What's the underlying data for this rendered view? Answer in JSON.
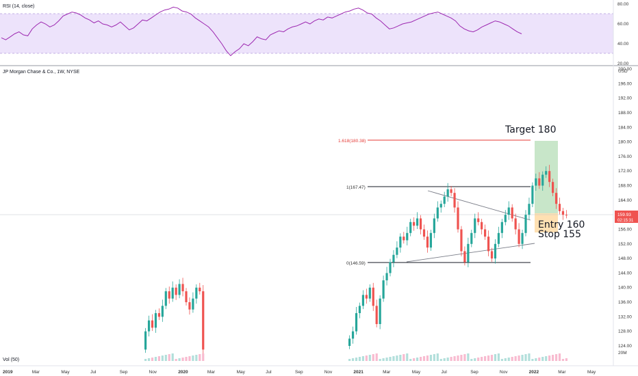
{
  "rsi_panel": {
    "title": "RSI (14, close)",
    "ticks": [
      "80.00",
      "60.00",
      "40.00",
      "20.00"
    ]
  },
  "price_panel": {
    "title": "JP Morgan Chase & Co., 1W, NYSE",
    "currency": "USD",
    "price_ticks": [
      "200.00",
      "196.00",
      "192.00",
      "188.00",
      "184.00",
      "180.00",
      "176.00",
      "172.00",
      "168.00",
      "164.00",
      "160.00",
      "156.00",
      "152.00",
      "148.00",
      "144.00",
      "140.00",
      "136.00",
      "132.00",
      "128.00",
      "124.00"
    ],
    "last_price": "159.93",
    "countdown": "02:15:31"
  },
  "volume_panel": {
    "title": "Vol (50)",
    "tick": "20M"
  },
  "time_axis": [
    "2019",
    "Mar",
    "May",
    "Jul",
    "Sep",
    "Nov",
    "2020",
    "Mar",
    "May",
    "Jul",
    "Sep",
    "Nov",
    "2021",
    "Mar",
    "May",
    "Jul",
    "Sep",
    "Nov",
    "2022",
    "Mar",
    "May"
  ],
  "annotations": {
    "fib_1618": "1.618(180.38)",
    "fib_1": "1(167.47)",
    "fib_0": "0(146.59)",
    "target": "Target 180",
    "entry": "Entry 160",
    "stop": "Stop 155"
  },
  "colors": {
    "up": "#26a69a",
    "down": "#ef5350",
    "rsi_line": "#9c27b0",
    "rsi_band": "#ede3fb",
    "target_zone": "#c8e6c9",
    "stop_zone": "#ffe0b2",
    "fib_1618": "#e53935",
    "last_price_bg": "#ef5350"
  },
  "chart_data": {
    "type": "candlestick",
    "instrument": "JP Morgan Chase & Co.",
    "interval": "1W",
    "price_range": [
      122,
      200
    ],
    "rsi_range": [
      20,
      80
    ],
    "levels": {
      "fib_1618": 180.38,
      "fib_1": 167.47,
      "fib_0": 146.59,
      "target": 180,
      "entry": 160,
      "stop": 155,
      "last": 159.93
    },
    "candles_2020": [
      [
        123,
        128
      ],
      [
        128,
        131
      ],
      [
        131,
        129
      ],
      [
        129,
        133
      ],
      [
        133,
        132
      ],
      [
        132,
        135
      ],
      [
        135,
        139
      ],
      [
        139,
        137
      ],
      [
        137,
        140
      ],
      [
        140,
        138
      ],
      [
        138,
        141
      ],
      [
        141,
        139
      ],
      [
        139,
        136
      ],
      [
        136,
        134
      ],
      [
        134,
        137
      ],
      [
        137,
        140
      ],
      [
        140,
        139
      ],
      [
        139,
        123
      ]
    ],
    "candles_2021": [
      [
        124,
        126
      ],
      [
        126,
        128
      ],
      [
        128,
        133
      ],
      [
        133,
        135
      ],
      [
        135,
        138
      ],
      [
        138,
        137
      ],
      [
        137,
        140
      ],
      [
        140,
        135
      ],
      [
        135,
        130
      ],
      [
        130,
        137
      ],
      [
        137,
        142
      ],
      [
        142,
        144
      ],
      [
        144,
        147
      ],
      [
        147,
        149
      ],
      [
        149,
        151
      ],
      [
        151,
        154
      ],
      [
        154,
        153
      ],
      [
        153,
        155
      ],
      [
        155,
        158
      ],
      [
        158,
        157
      ],
      [
        157,
        159
      ],
      [
        159,
        156
      ],
      [
        156,
        154
      ],
      [
        154,
        151
      ],
      [
        151,
        155
      ],
      [
        155,
        159
      ],
      [
        159,
        162
      ],
      [
        162,
        163
      ],
      [
        163,
        165
      ],
      [
        165,
        167
      ],
      [
        167,
        166
      ],
      [
        166,
        162
      ],
      [
        162,
        156
      ],
      [
        156,
        150
      ],
      [
        150,
        147
      ],
      [
        147,
        152
      ],
      [
        152,
        155
      ],
      [
        155,
        159
      ],
      [
        159,
        158
      ],
      [
        158,
        156
      ],
      [
        156,
        154
      ],
      [
        154,
        150
      ],
      [
        150,
        148
      ],
      [
        148,
        152
      ],
      [
        152,
        155
      ],
      [
        155,
        158
      ],
      [
        158,
        160
      ],
      [
        160,
        162
      ],
      [
        162,
        159
      ],
      [
        159,
        156
      ],
      [
        156,
        152
      ],
      [
        152,
        155
      ],
      [
        155,
        160
      ],
      [
        160,
        163
      ],
      [
        163,
        168
      ],
      [
        168,
        170
      ],
      [
        170,
        168
      ],
      [
        168,
        171
      ],
      [
        171,
        172
      ],
      [
        172,
        169
      ],
      [
        169,
        166
      ],
      [
        166,
        163
      ],
      [
        163,
        161
      ],
      [
        161,
        160
      ],
      [
        160,
        159.93
      ]
    ],
    "rsi": [
      46,
      44,
      47,
      50,
      52,
      49,
      48,
      55,
      59,
      62,
      60,
      57,
      59,
      63,
      68,
      70,
      72,
      71,
      69,
      66,
      64,
      61,
      63,
      60,
      59,
      57,
      59,
      62,
      58,
      54,
      56,
      60,
      64,
      63,
      66,
      69,
      72,
      74,
      75,
      77,
      76,
      73,
      72,
      70,
      66,
      63,
      60,
      57,
      52,
      46,
      40,
      33,
      28,
      32,
      35,
      40,
      38,
      42,
      47,
      45,
      44,
      49,
      51,
      53,
      52,
      55,
      57,
      58,
      60,
      62,
      60,
      63,
      65,
      64,
      67,
      66,
      68,
      70,
      72,
      73,
      75,
      76,
      74,
      71,
      70,
      66,
      63,
      59,
      55,
      56,
      58,
      60,
      61,
      62,
      64,
      66,
      68,
      70,
      71,
      72,
      70,
      68,
      66,
      63,
      58,
      55,
      53,
      52,
      54,
      57,
      59,
      61,
      63,
      62,
      60,
      58,
      55,
      52,
      50
    ]
  }
}
